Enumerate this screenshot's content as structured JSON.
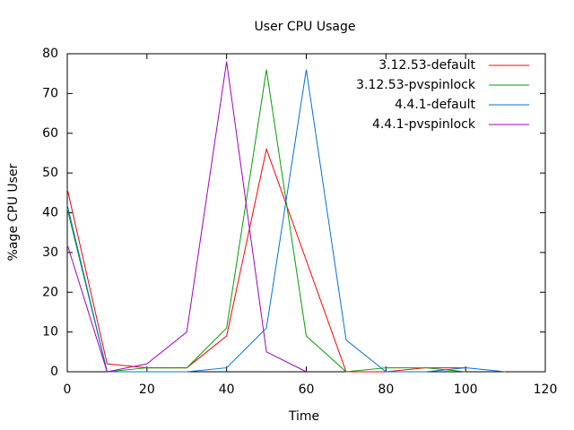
{
  "chart_data": {
    "type": "line",
    "title": "User CPU Usage",
    "xlabel": "Time",
    "ylabel": "%age CPU User",
    "x": [
      0,
      10,
      20,
      30,
      40,
      50,
      60,
      70,
      80,
      90,
      100,
      110
    ],
    "series": [
      {
        "name": "3.12.53-default",
        "color": "#ff0000",
        "values": [
          46,
          2,
          1,
          1,
          9,
          56,
          28,
          0,
          0,
          1,
          1,
          null
        ]
      },
      {
        "name": "3.12.53-pvspinlock",
        "color": "#00a000",
        "values": [
          41,
          0,
          1,
          1,
          11,
          76,
          9,
          0,
          1,
          1,
          0,
          null
        ]
      },
      {
        "name": "4.4.1-default",
        "color": "#0070e0",
        "values": [
          42,
          0,
          0,
          0,
          1,
          11,
          76,
          8,
          0,
          0,
          1,
          0
        ]
      },
      {
        "name": "4.4.1-pvspinlock",
        "color": "#a000c0",
        "values": [
          32,
          0,
          2,
          10,
          78,
          5,
          0,
          null,
          null,
          null,
          null,
          null
        ]
      }
    ],
    "xlim": [
      0,
      120
    ],
    "xticks": [
      0,
      20,
      40,
      60,
      80,
      100,
      120
    ],
    "ylim": [
      0,
      80
    ],
    "yticks": [
      0,
      10,
      20,
      30,
      40,
      50,
      60,
      70,
      80
    ],
    "legend": "top-right",
    "grid": false
  }
}
